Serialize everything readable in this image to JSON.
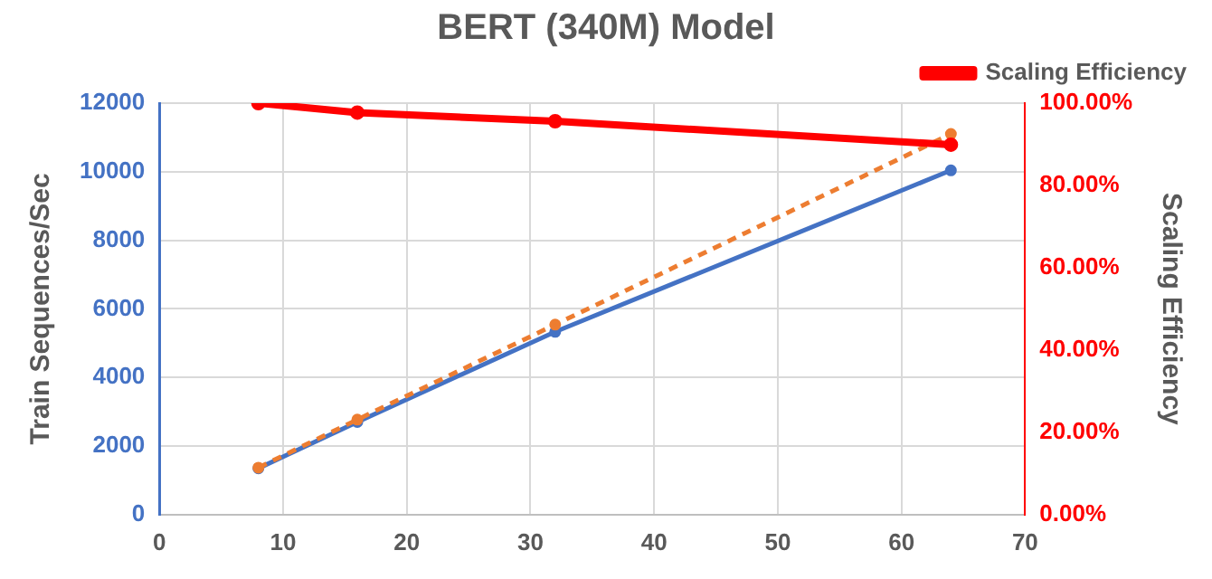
{
  "chart_data": {
    "type": "line",
    "title": "BERT (340M) Model",
    "ylabel": "Train Sequences/Sec",
    "y2label": "Scaling Efficiency",
    "x": [
      8,
      16,
      32,
      64
    ],
    "series": [
      {
        "color": "#4472c4",
        "values": [
          1350,
          2700,
          5330,
          10040
        ]
      },
      {
        "color": "#ed7d31",
        "values": [
          1370,
          2770,
          5540,
          11100
        ],
        "line_style": "dashed"
      },
      {
        "name": "Scaling Efficiency",
        "color": "#ff0000",
        "values": [
          100,
          97.7,
          95.6,
          89.9
        ],
        "axis": "y2"
      }
    ],
    "xlim": [
      0,
      70
    ],
    "xticks": [
      0,
      10,
      20,
      30,
      40,
      50,
      60,
      70
    ],
    "ylim": [
      0,
      12000
    ],
    "yticks": [
      0,
      2000,
      4000,
      6000,
      8000,
      10000,
      12000
    ],
    "y2lim": [
      0,
      100
    ],
    "y2ticks": [
      {
        "value": 0,
        "label": "0.00%"
      },
      {
        "value": 20,
        "label": "20.00%"
      },
      {
        "value": 40,
        "label": "40.00%"
      },
      {
        "value": 60,
        "label": "60.00%"
      },
      {
        "value": 80,
        "label": "80.00%"
      },
      {
        "value": 100,
        "label": "100.00%"
      }
    ],
    "grid": true,
    "legend": "top right",
    "marker": "circle",
    "line_style": "solid"
  }
}
